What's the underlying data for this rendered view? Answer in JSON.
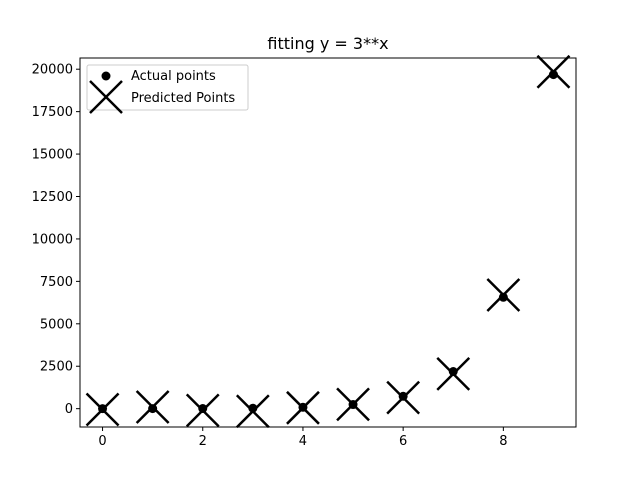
{
  "chart_data": {
    "type": "scatter",
    "title": "fitting y = 3**x",
    "xlabel": "",
    "ylabel": "",
    "xlim": [
      -0.45,
      9.45
    ],
    "ylim": [
      -1080,
      20660
    ],
    "xticks": [
      0,
      2,
      4,
      6,
      8
    ],
    "yticks": [
      0,
      2500,
      5000,
      7500,
      10000,
      12500,
      15000,
      17500,
      20000
    ],
    "grid": false,
    "legend_location": "top-left",
    "series": [
      {
        "name": "Actual points",
        "marker": "circle",
        "color": "#000000",
        "x": [
          0,
          1,
          2,
          3,
          4,
          5,
          6,
          7,
          8,
          9
        ],
        "y": [
          1,
          3,
          9,
          27,
          81,
          243,
          729,
          2187,
          6561,
          19683
        ]
      },
      {
        "name": "Predicted Points",
        "marker": "x",
        "color": "#000000",
        "x": [
          0,
          1,
          2,
          3,
          4,
          5,
          6,
          7,
          8,
          9
        ],
        "y": [
          -50,
          100,
          -100,
          -150,
          50,
          250,
          650,
          2050,
          6700,
          19850
        ]
      }
    ]
  }
}
